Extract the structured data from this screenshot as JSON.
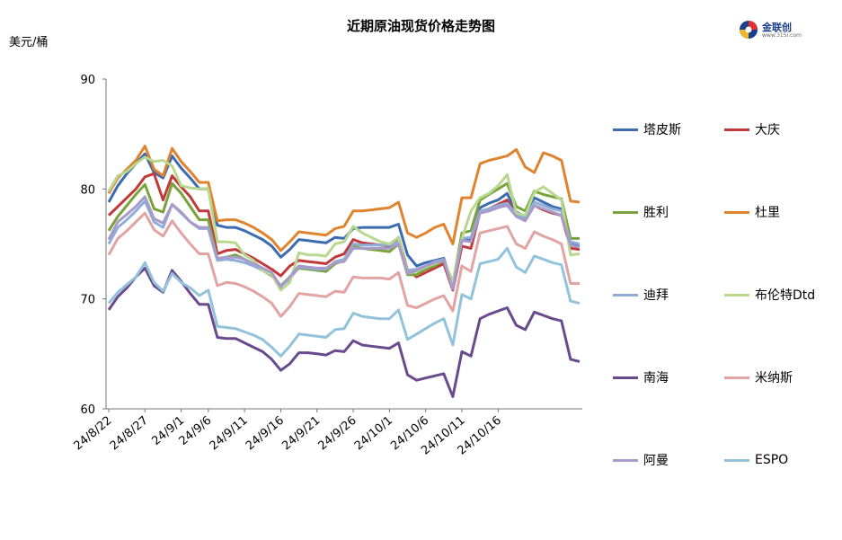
{
  "chart_data": {
    "type": "line",
    "title": "近期原油现货价格走势图",
    "ylabel": "美元/桶",
    "xlabel": "",
    "ylim": [
      60,
      90
    ],
    "yticks": [
      60,
      70,
      80,
      90
    ],
    "grid": false,
    "legend_position": "right",
    "x_tick_labels": [
      "24/8/22",
      "24/8/27",
      "24/9/1",
      "24/9/6",
      "24/9/11",
      "24/9/16",
      "24/9/21",
      "24/9/26",
      "24/10/1",
      "24/10/6",
      "24/10/11",
      "24/10/16"
    ],
    "x_tick_indices": [
      0,
      4,
      8,
      11,
      15,
      19,
      23,
      27,
      31,
      35,
      39,
      43
    ],
    "series": [
      {
        "name": "塔皮斯",
        "color": "#3c6bb0",
        "values": [
          78.8,
          80.3,
          81.4,
          82.3,
          83.2,
          81.5,
          81.0,
          83.0,
          81.9,
          81.0,
          80.0,
          80.0,
          76.7,
          76.5,
          76.5,
          76.2,
          75.8,
          75.4,
          74.8,
          73.8,
          74.5,
          75.4,
          75.3,
          75.2,
          75.1,
          75.6,
          75.5,
          76.4,
          76.5,
          76.5,
          76.5,
          76.5,
          76.8,
          74.0,
          73.0,
          73.3,
          73.5,
          73.7,
          71.2,
          75.5,
          75.3,
          78.3,
          78.7,
          79.0,
          79.6,
          77.9,
          77.5,
          79.2,
          78.8,
          78.4,
          78.2,
          75.0,
          74.8
        ]
      },
      {
        "name": "大庆",
        "color": "#c0393b",
        "values": [
          77.6,
          78.4,
          79.2,
          80.0,
          81.1,
          81.4,
          79.0,
          81.2,
          80.2,
          79.3,
          78.0,
          78.0,
          74.1,
          74.4,
          74.5,
          74.1,
          73.7,
          73.2,
          72.7,
          72.1,
          73.0,
          73.5,
          73.4,
          73.3,
          73.2,
          73.8,
          74.1,
          75.4,
          75.1,
          75.0,
          74.9,
          74.8,
          75.6,
          72.6,
          72.0,
          72.4,
          72.8,
          73.2,
          70.8,
          74.8,
          74.6,
          77.9,
          78.2,
          78.6,
          79.0,
          77.6,
          77.2,
          78.5,
          78.1,
          77.8,
          77.6,
          74.6,
          74.5
        ]
      },
      {
        "name": "胜利",
        "color": "#7aa23a",
        "values": [
          76.2,
          77.5,
          78.5,
          79.5,
          80.4,
          78.2,
          77.9,
          80.5,
          79.6,
          78.4,
          77.2,
          77.2,
          73.6,
          73.8,
          74.0,
          73.6,
          73.1,
          72.6,
          72.1,
          71.2,
          72.0,
          72.8,
          72.7,
          72.6,
          72.5,
          73.2,
          73.5,
          74.8,
          74.6,
          74.5,
          74.4,
          74.3,
          75.0,
          72.2,
          72.2,
          72.7,
          73.0,
          73.5,
          71.4,
          76.0,
          76.2,
          79.0,
          79.5,
          80.0,
          80.5,
          78.4,
          78.0,
          79.8,
          79.5,
          79.3,
          79.1,
          75.5,
          75.5
        ]
      },
      {
        "name": "杜里",
        "color": "#e0832f",
        "values": [
          79.6,
          81.0,
          81.8,
          82.6,
          83.9,
          81.8,
          81.2,
          83.7,
          82.5,
          81.6,
          80.6,
          80.6,
          77.1,
          77.2,
          77.2,
          76.9,
          76.5,
          76.0,
          75.4,
          74.4,
          75.2,
          76.1,
          76.0,
          75.9,
          75.8,
          76.4,
          76.6,
          78.0,
          78.0,
          78.1,
          78.2,
          78.3,
          78.8,
          76.0,
          75.6,
          76.0,
          76.5,
          76.8,
          75.0,
          79.2,
          79.2,
          82.3,
          82.6,
          82.8,
          83.0,
          83.6,
          82.0,
          81.5,
          83.3,
          83.0,
          82.6,
          78.9,
          78.8
        ]
      },
      {
        "name": "迪拜",
        "color": "#8eaed8",
        "values": [
          75.0,
          76.5,
          77.2,
          78.0,
          78.9,
          77.0,
          76.5,
          78.6,
          77.8,
          77.0,
          76.4,
          76.4,
          73.5,
          73.6,
          73.5,
          73.3,
          73.0,
          72.6,
          72.2,
          71.2,
          71.8,
          72.9,
          72.8,
          72.7,
          72.7,
          73.4,
          73.6,
          75.0,
          74.9,
          74.9,
          74.9,
          74.9,
          75.2,
          72.6,
          72.7,
          73.0,
          73.4,
          73.6,
          71.0,
          75.5,
          75.6,
          78.0,
          78.2,
          78.5,
          78.7,
          77.7,
          77.3,
          78.8,
          78.5,
          78.2,
          78.0,
          75.2,
          75.0
        ]
      },
      {
        "name": "布伦特Dtd",
        "color": "#b8d88f",
        "values": [
          79.8,
          81.2,
          81.6,
          82.3,
          82.9,
          82.5,
          82.6,
          82.1,
          80.3,
          80.1,
          80.0,
          80.0,
          75.2,
          75.2,
          75.1,
          74.0,
          73.5,
          72.6,
          72.2,
          70.8,
          71.5,
          74.2,
          74.0,
          74.0,
          73.9,
          75.0,
          75.2,
          76.6,
          76.0,
          75.6,
          75.2,
          75.0,
          75.6,
          72.3,
          72.5,
          72.9,
          73.2,
          73.5,
          71.6,
          75.5,
          78.0,
          79.2,
          79.6,
          80.3,
          81.3,
          77.8,
          77.6,
          79.7,
          80.2,
          79.6,
          79.0,
          74.0,
          74.1
        ]
      },
      {
        "name": "南海",
        "color": "#6a4a8e",
        "values": [
          69.0,
          70.2,
          71.0,
          72.0,
          72.8,
          71.2,
          70.6,
          72.6,
          71.6,
          70.5,
          69.5,
          69.5,
          66.5,
          66.4,
          66.4,
          66.0,
          65.6,
          65.2,
          64.5,
          63.5,
          64.1,
          65.1,
          65.1,
          65.0,
          64.9,
          65.3,
          65.2,
          66.2,
          65.8,
          65.7,
          65.6,
          65.5,
          66.0,
          63.1,
          62.6,
          62.8,
          63.0,
          63.2,
          61.1,
          65.2,
          64.8,
          68.2,
          68.6,
          68.9,
          69.2,
          67.6,
          67.2,
          68.8,
          68.5,
          68.2,
          68.0,
          64.5,
          64.3
        ]
      },
      {
        "name": "米纳斯",
        "color": "#e2a3a3",
        "values": [
          74.0,
          75.5,
          76.2,
          77.0,
          77.8,
          76.3,
          75.7,
          77.1,
          76.0,
          75.0,
          74.1,
          74.1,
          71.2,
          71.5,
          71.4,
          71.1,
          70.7,
          70.2,
          69.6,
          68.4,
          69.3,
          70.5,
          70.4,
          70.3,
          70.2,
          70.7,
          70.6,
          72.0,
          71.9,
          71.9,
          71.9,
          71.8,
          72.4,
          69.4,
          69.2,
          69.6,
          70.0,
          70.3,
          68.9,
          73.0,
          72.5,
          76.0,
          76.2,
          76.4,
          76.6,
          75.0,
          74.6,
          76.1,
          75.7,
          75.4,
          75.0,
          71.4,
          71.4
        ]
      },
      {
        "name": "阿曼",
        "color": "#a89ac9",
        "values": [
          75.4,
          77.0,
          77.7,
          78.4,
          79.3,
          77.3,
          76.9,
          78.6,
          77.9,
          77.0,
          76.5,
          76.5,
          73.7,
          73.8,
          73.8,
          73.6,
          73.2,
          72.8,
          72.4,
          71.1,
          72.0,
          73.0,
          72.9,
          72.8,
          72.8,
          73.3,
          73.4,
          74.6,
          74.6,
          74.6,
          74.6,
          74.6,
          75.0,
          72.3,
          72.6,
          73.0,
          73.3,
          73.5,
          70.9,
          75.3,
          75.2,
          77.8,
          78.0,
          78.3,
          78.5,
          77.5,
          77.1,
          78.5,
          78.2,
          77.9,
          77.6,
          74.9,
          74.7
        ]
      },
      {
        "name": "ESPO",
        "color": "#92c3db",
        "values": [
          69.6,
          70.6,
          71.3,
          72.0,
          73.3,
          71.5,
          70.7,
          72.3,
          71.5,
          71.0,
          70.3,
          70.8,
          67.5,
          67.4,
          67.3,
          67.0,
          66.7,
          66.3,
          65.6,
          64.8,
          65.7,
          66.8,
          66.7,
          66.6,
          66.5,
          67.2,
          67.3,
          68.7,
          68.4,
          68.3,
          68.2,
          68.2,
          69.0,
          66.3,
          66.8,
          67.3,
          67.8,
          68.2,
          65.8,
          70.4,
          70.0,
          73.2,
          73.4,
          73.6,
          74.6,
          72.9,
          72.4,
          73.9,
          73.6,
          73.3,
          73.1,
          69.8,
          69.6
        ]
      }
    ]
  },
  "logo": {
    "name": "金联创",
    "sub": "www.315i.com"
  }
}
